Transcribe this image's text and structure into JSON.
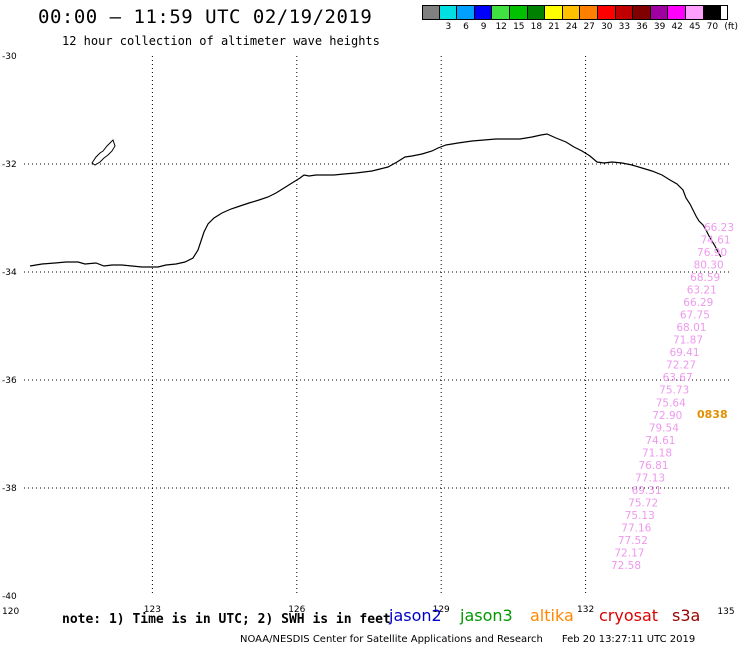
{
  "header": {
    "title": "00:00 – 11:59 UTC 02/19/2019",
    "subtitle": "12 hour collection of altimeter wave heights"
  },
  "colorbar": {
    "unit_label": "(ft)",
    "cells": [
      {
        "color": "#808080",
        "label": ""
      },
      {
        "color": "#00e0e0",
        "label": "3"
      },
      {
        "color": "#00a0ff",
        "label": "6"
      },
      {
        "color": "#0000ff",
        "label": "9"
      },
      {
        "color": "#40e040",
        "label": "12"
      },
      {
        "color": "#00c000",
        "label": "15"
      },
      {
        "color": "#008000",
        "label": "18"
      },
      {
        "color": "#ffff00",
        "label": "21"
      },
      {
        "color": "#ffc000",
        "label": "24"
      },
      {
        "color": "#ff8000",
        "label": "27"
      },
      {
        "color": "#ff0000",
        "label": "30"
      },
      {
        "color": "#c00000",
        "label": "33"
      },
      {
        "color": "#800000",
        "label": "36"
      },
      {
        "color": "#a000a0",
        "label": "39"
      },
      {
        "color": "#ff00ff",
        "label": "42"
      },
      {
        "color": "#ffa0ff",
        "label": "45"
      },
      {
        "color": "#000000",
        "label": "70"
      }
    ]
  },
  "map": {
    "lon_range": [
      120,
      135
    ],
    "lat_range": [
      -40,
      -30
    ],
    "lon_ticks": [
      "120",
      "123",
      "126",
      "129",
      "132",
      "135"
    ],
    "lat_ticks": [
      "-30",
      "-32",
      "-34",
      "-36",
      "-38",
      "-40"
    ],
    "track_color": "#ee99ee",
    "track_values": [
      "66.23",
      "74.61",
      "76.90",
      "80.30",
      "68.59",
      "63.21",
      "66.29",
      "67.75",
      "68.01",
      "71.87",
      "69.41",
      "72.27",
      "63.67",
      "75.73",
      "75.64",
      "72.90",
      "79.54",
      "74.61",
      "71.18",
      "76.81",
      "77.13",
      "69.31",
      "75.72",
      "75.13",
      "77.16",
      "77.52",
      "72.17",
      "72.58"
    ],
    "time_label": "0838",
    "time_label_color": "#e09000"
  },
  "footer": {
    "note": "note: 1) Time is in UTC; 2) SWH is in feet",
    "satellites": [
      {
        "name": "jason2",
        "color": "#0000cc"
      },
      {
        "name": "jason3",
        "color": "#009900"
      },
      {
        "name": "altika",
        "color": "#ff8800"
      },
      {
        "name": "cryosat",
        "color": "#dd0000"
      },
      {
        "name": "s3a",
        "color": "#990000"
      }
    ],
    "credit": "NOAA/NESDIS Center for Satellite Applications and Research      Feb 20 13:27:11 UTC 2019"
  }
}
